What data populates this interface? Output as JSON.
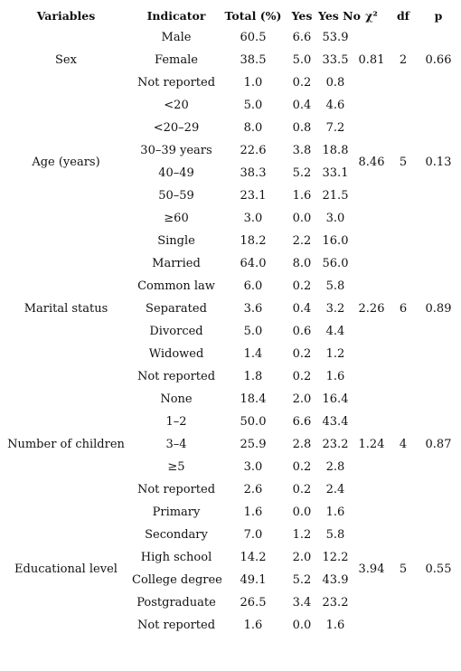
{
  "table": {
    "headers": [
      "Variables",
      "Indicator",
      "Total (%)",
      "Yes",
      "Yes No",
      "χ²",
      "df",
      "p"
    ],
    "groups": [
      {
        "variable": "Sex",
        "chi2": "0.81",
        "df": "2",
        "p": "0.66",
        "rows": [
          {
            "indicator": "Male",
            "total": "60.5",
            "yes": "6.6",
            "no": "53.9"
          },
          {
            "indicator": "Female",
            "total": "38.5",
            "yes": "5.0",
            "no": "33.5"
          },
          {
            "indicator": "Not reported",
            "total": "1.0",
            "yes": "0.2",
            "no": "0.8"
          }
        ]
      },
      {
        "variable": "Age (years)",
        "chi2": "8.46",
        "df": "5",
        "p": "0.13",
        "rows": [
          {
            "indicator": "<20",
            "total": "5.0",
            "yes": "0.4",
            "no": "4.6"
          },
          {
            "indicator": "<20–29",
            "total": "8.0",
            "yes": "0.8",
            "no": "7.2"
          },
          {
            "indicator": "30–39 years",
            "total": "22.6",
            "yes": "3.8",
            "no": "18.8"
          },
          {
            "indicator": "40–49",
            "total": "38.3",
            "yes": "5.2",
            "no": "33.1"
          },
          {
            "indicator": "50–59",
            "total": "23.1",
            "yes": "1.6",
            "no": "21.5"
          },
          {
            "indicator": "≥60",
            "total": "3.0",
            "yes": "0.0",
            "no": "3.0"
          }
        ]
      },
      {
        "variable": "Marital status",
        "chi2": "2.26",
        "df": "6",
        "p": "0.89",
        "rows": [
          {
            "indicator": "Single",
            "total": "18.2",
            "yes": "2.2",
            "no": "16.0"
          },
          {
            "indicator": "Married",
            "total": "64.0",
            "yes": "8.0",
            "no": "56.0"
          },
          {
            "indicator": "Common law",
            "total": "6.0",
            "yes": "0.2",
            "no": "5.8"
          },
          {
            "indicator": "Separated",
            "total": "3.6",
            "yes": "0.4",
            "no": "3.2"
          },
          {
            "indicator": "Divorced",
            "total": "5.0",
            "yes": "0.6",
            "no": "4.4"
          },
          {
            "indicator": "Widowed",
            "total": "1.4",
            "yes": "0.2",
            "no": "1.2"
          },
          {
            "indicator": "Not reported",
            "total": "1.8",
            "yes": "0.2",
            "no": "1.6"
          }
        ]
      },
      {
        "variable": "Number of children",
        "chi2": "1.24",
        "df": "4",
        "p": "0.87",
        "rows": [
          {
            "indicator": "None",
            "total": "18.4",
            "yes": "2.0",
            "no": "16.4"
          },
          {
            "indicator": "1–2",
            "total": "50.0",
            "yes": "6.6",
            "no": "43.4"
          },
          {
            "indicator": "3–4",
            "total": "25.9",
            "yes": "2.8",
            "no": "23.2"
          },
          {
            "indicator": "≥5",
            "total": "3.0",
            "yes": "0.2",
            "no": "2.8"
          },
          {
            "indicator": "Not reported",
            "total": "2.6",
            "yes": "0.2",
            "no": "2.4"
          }
        ]
      },
      {
        "variable": "Educational level",
        "chi2": "3.94",
        "df": "5",
        "p": "0.55",
        "rows": [
          {
            "indicator": "Primary",
            "total": "1.6",
            "yes": "0.0",
            "no": "1.6"
          },
          {
            "indicator": "Secondary",
            "total": "7.0",
            "yes": "1.2",
            "no": "5.8"
          },
          {
            "indicator": "High school",
            "total": "14.2",
            "yes": "2.0",
            "no": "12.2"
          },
          {
            "indicator": "College degree",
            "total": "49.1",
            "yes": "5.2",
            "no": "43.9"
          },
          {
            "indicator": "Postgraduate",
            "total": "26.5",
            "yes": "3.4",
            "no": "23.2"
          },
          {
            "indicator": "Not reported",
            "total": "1.6",
            "yes": "0.0",
            "no": "1.6"
          }
        ]
      }
    ]
  }
}
